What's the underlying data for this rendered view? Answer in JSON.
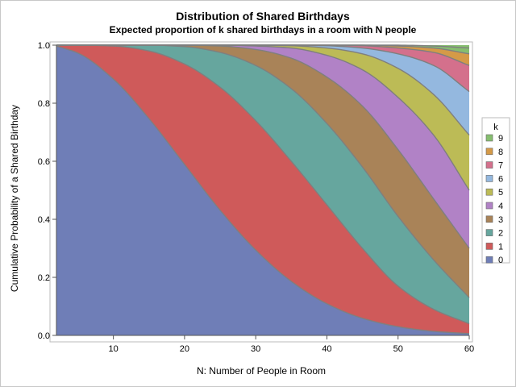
{
  "chart_data": {
    "type": "area",
    "title": "Distribution of Shared Birthdays",
    "subtitle": "Expected proportion of k shared birthdays in a room with N people",
    "xlabel": "N: Number of People in Room",
    "ylabel": "Cumulative Probability of a Shared Birthday",
    "xlim": [
      2,
      60
    ],
    "ylim": [
      0,
      1
    ],
    "x_ticks": [
      10,
      20,
      30,
      40,
      50,
      60
    ],
    "y_ticks": [
      "0.0",
      "0.2",
      "0.4",
      "0.6",
      "0.8",
      "1.0"
    ],
    "legend_title": "k",
    "legend_position": "right",
    "x": [
      2,
      5,
      10,
      15,
      20,
      25,
      30,
      35,
      40,
      45,
      50,
      55,
      60
    ],
    "series": [
      {
        "name": "0",
        "color": "#6f7eb7",
        "cumulative": [
          0.997,
          0.973,
          0.883,
          0.747,
          0.589,
          0.431,
          0.294,
          0.186,
          0.109,
          0.059,
          0.03,
          0.014,
          0.006
        ]
      },
      {
        "name": "1",
        "color": "#cf5a5a",
        "cumulative": [
          1.0,
          1.0,
          0.997,
          0.98,
          0.935,
          0.855,
          0.74,
          0.6,
          0.45,
          0.3,
          0.17,
          0.09,
          0.04
        ]
      },
      {
        "name": "2",
        "color": "#66a69e",
        "cumulative": [
          1.0,
          1.0,
          1.0,
          1.0,
          0.995,
          0.975,
          0.93,
          0.85,
          0.73,
          0.58,
          0.41,
          0.26,
          0.13
        ]
      },
      {
        "name": "3",
        "color": "#a98358",
        "cumulative": [
          1.0,
          1.0,
          1.0,
          1.0,
          1.0,
          0.997,
          0.985,
          0.955,
          0.89,
          0.79,
          0.64,
          0.47,
          0.3
        ]
      },
      {
        "name": "4",
        "color": "#b182c6",
        "cumulative": [
          1.0,
          1.0,
          1.0,
          1.0,
          1.0,
          1.0,
          0.997,
          0.99,
          0.965,
          0.915,
          0.82,
          0.69,
          0.5
        ]
      },
      {
        "name": "5",
        "color": "#bcbb56",
        "cumulative": [
          1.0,
          1.0,
          1.0,
          1.0,
          1.0,
          1.0,
          1.0,
          0.998,
          0.99,
          0.97,
          0.92,
          0.83,
          0.69
        ]
      },
      {
        "name": "6",
        "color": "#94b8df",
        "cumulative": [
          1.0,
          1.0,
          1.0,
          1.0,
          1.0,
          1.0,
          1.0,
          1.0,
          0.998,
          0.99,
          0.97,
          0.93,
          0.84
        ]
      },
      {
        "name": "7",
        "color": "#d4708c",
        "cumulative": [
          1.0,
          1.0,
          1.0,
          1.0,
          1.0,
          1.0,
          1.0,
          1.0,
          1.0,
          0.998,
          0.99,
          0.975,
          0.93
        ]
      },
      {
        "name": "8",
        "color": "#d59a47",
        "cumulative": [
          1.0,
          1.0,
          1.0,
          1.0,
          1.0,
          1.0,
          1.0,
          1.0,
          1.0,
          1.0,
          0.997,
          0.99,
          0.97
        ]
      },
      {
        "name": "9",
        "color": "#86be6f",
        "cumulative": [
          1.0,
          1.0,
          1.0,
          1.0,
          1.0,
          1.0,
          1.0,
          1.0,
          1.0,
          1.0,
          1.0,
          0.997,
          0.99
        ]
      }
    ]
  }
}
